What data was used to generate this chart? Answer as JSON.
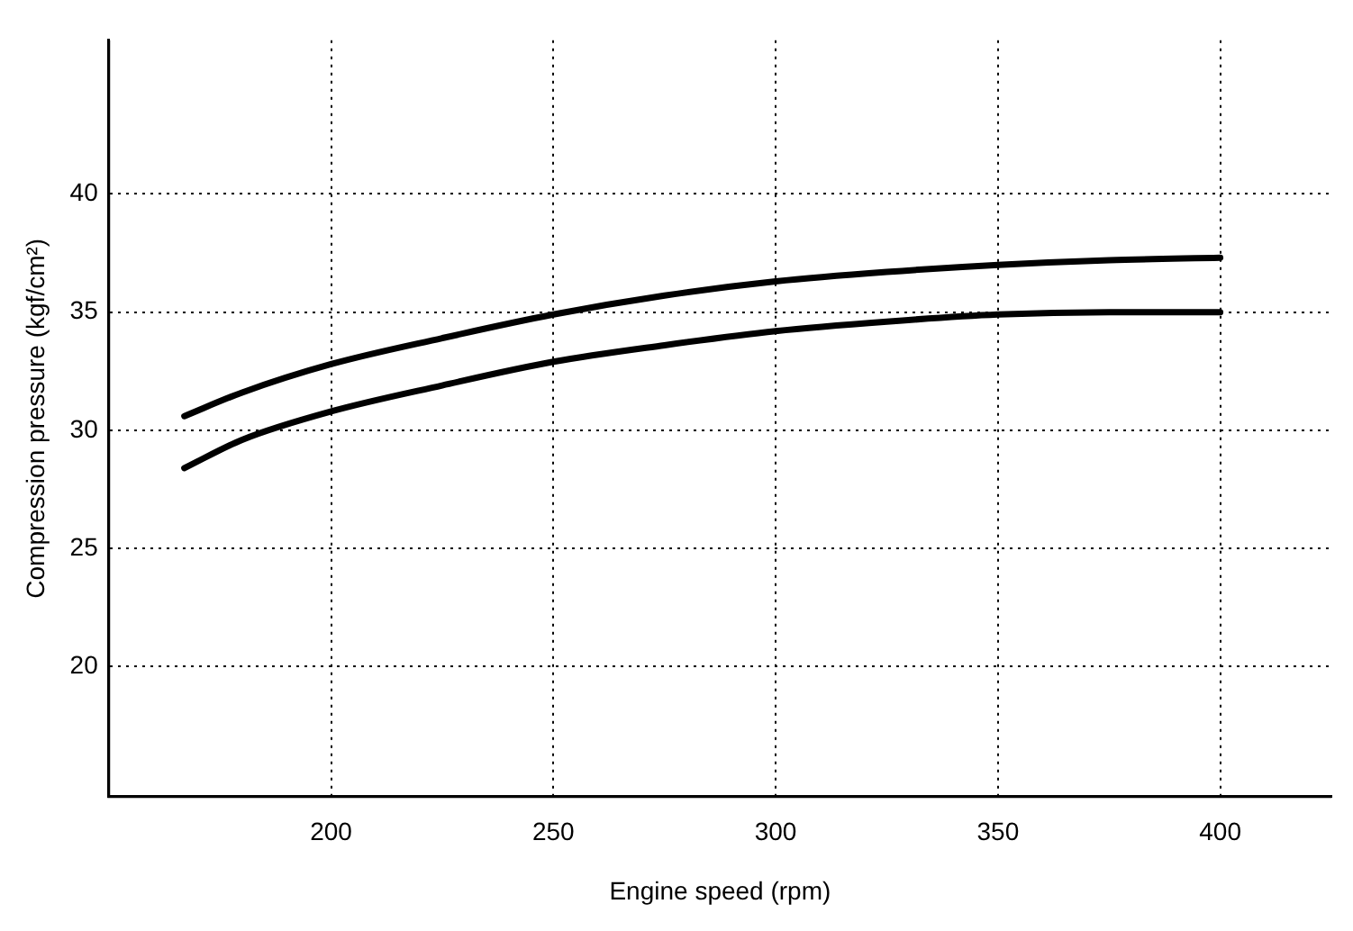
{
  "chart_data": {
    "type": "line",
    "xlabel": "Engine speed (rpm)",
    "ylabel": "Compression pressure (kgf/cm²)",
    "xlim": [
      150,
      425
    ],
    "xticks": [
      200,
      250,
      300,
      350,
      400
    ],
    "ylim": [
      14.5,
      46.5
    ],
    "yticks": [
      20,
      25,
      30,
      35,
      40
    ],
    "grid": true,
    "line_style": "solid",
    "series": [
      {
        "color": "#000000",
        "x": [
          167,
          180,
          200,
          225,
          250,
          275,
          300,
          325,
          350,
          375,
          400
        ],
        "values": [
          30.6,
          31.6,
          32.8,
          33.9,
          34.9,
          35.7,
          36.3,
          36.7,
          37.0,
          37.2,
          37.3
        ]
      },
      {
        "color": "#000000",
        "x": [
          167,
          180,
          200,
          225,
          250,
          275,
          300,
          325,
          350,
          375,
          400
        ],
        "values": [
          28.4,
          29.6,
          30.8,
          31.9,
          32.9,
          33.6,
          34.2,
          34.6,
          34.9,
          35.0,
          35.0
        ]
      }
    ]
  }
}
